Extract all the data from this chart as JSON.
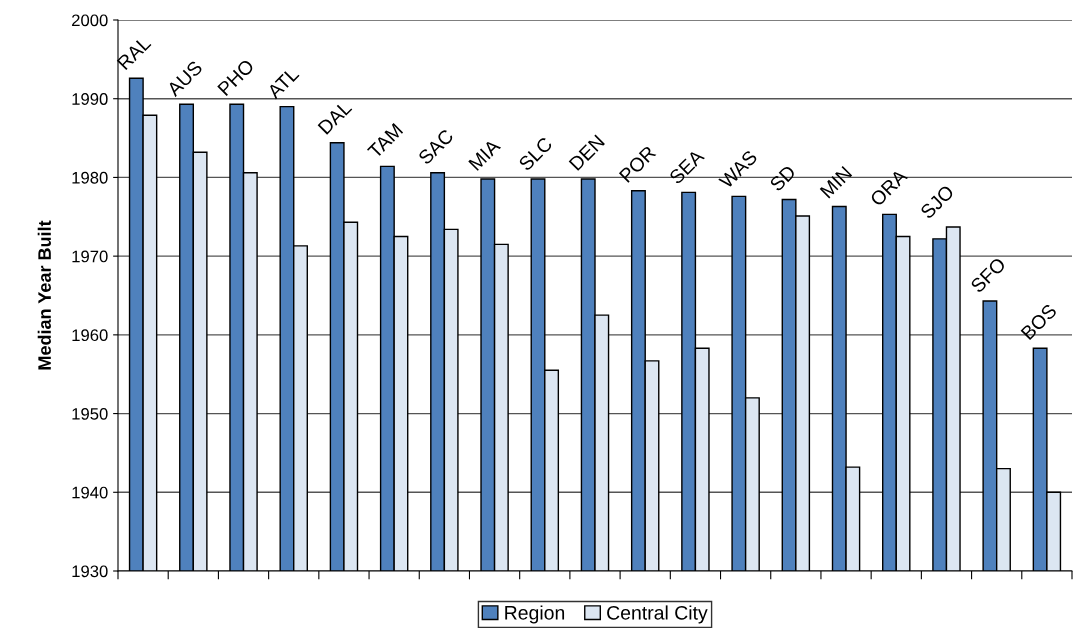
{
  "chart_data": {
    "type": "bar",
    "ylabel": "Median Year Built",
    "categories": [
      "RAL",
      "AUS",
      "PHO",
      "ATL",
      "DAL",
      "TAM",
      "SAC",
      "MIA",
      "SLC",
      "DEN",
      "POR",
      "SEA",
      "WAS",
      "SD",
      "MIN",
      "ORA",
      "SJO",
      "SFO",
      "BOS"
    ],
    "series": [
      {
        "name": "Region",
        "color": "#4f81bd",
        "values": [
          1992.6,
          1989.3,
          1989.3,
          1989.0,
          1984.4,
          1981.4,
          1980.6,
          1979.8,
          1979.8,
          1979.8,
          1978.3,
          1978.1,
          1977.6,
          1977.2,
          1976.3,
          1975.3,
          1972.2,
          1964.3,
          1958.3
        ]
      },
      {
        "name": "Central City",
        "color": "#dce6f2",
        "values": [
          1987.9,
          1983.2,
          1980.6,
          1971.3,
          1974.3,
          1972.5,
          1973.4,
          1971.5,
          1955.5,
          1962.5,
          1956.7,
          1958.3,
          1952.0,
          1975.1,
          1943.2,
          1972.5,
          1973.7,
          1943.0,
          1940.0
        ]
      }
    ],
    "ylim": [
      1930,
      2000
    ],
    "yticks": [
      1930,
      1940,
      1950,
      1960,
      1970,
      1980,
      1990,
      2000
    ],
    "grid": "y",
    "legend": "bottom"
  }
}
